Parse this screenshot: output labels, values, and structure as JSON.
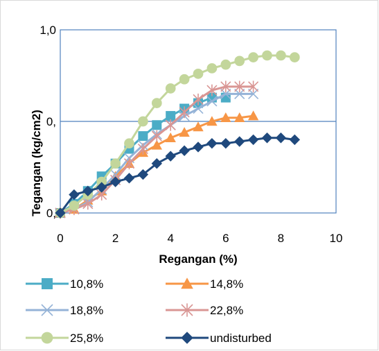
{
  "chart_data": {
    "type": "line",
    "xlabel": "Regangan (%)",
    "ylabel": "Tegangan (kg/cm2)",
    "xlim": [
      0,
      10
    ],
    "ylim": [
      0,
      1.0
    ],
    "x_ticks": [
      "0",
      "2",
      "4",
      "6",
      "8",
      "10"
    ],
    "y_ticks": [
      "0,",
      "0,",
      "1,0"
    ],
    "grid": "horizontal",
    "legend_placement": "bottom",
    "series": [
      {
        "name": "10,8%",
        "color": "#4BACC6",
        "marker": "square",
        "x": [
          0,
          0.5,
          1,
          1.5,
          2,
          2.5,
          3,
          3.5,
          4,
          4.5,
          5,
          5.5,
          6
        ],
        "y": [
          0,
          0.05,
          0.12,
          0.2,
          0.27,
          0.35,
          0.42,
          0.48,
          0.53,
          0.57,
          0.6,
          0.63,
          0.63
        ]
      },
      {
        "name": "14,8%",
        "color": "#F79646",
        "marker": "triangle",
        "x": [
          0,
          0.5,
          1,
          1.5,
          2,
          2.5,
          3,
          3.5,
          4,
          4.5,
          5,
          5.5,
          6,
          6.5,
          7
        ],
        "y": [
          0,
          0.02,
          0.07,
          0.12,
          0.2,
          0.27,
          0.33,
          0.37,
          0.41,
          0.44,
          0.47,
          0.5,
          0.52,
          0.52,
          0.53
        ]
      },
      {
        "name": "18,8%",
        "color": "#95B3D7",
        "marker": "x",
        "x": [
          0,
          0.5,
          1,
          1.5,
          2,
          2.5,
          3,
          3.5,
          4,
          4.5,
          5,
          5.5,
          6,
          6.5,
          7
        ],
        "y": [
          0,
          0.02,
          0.06,
          0.13,
          0.21,
          0.3,
          0.37,
          0.43,
          0.48,
          0.53,
          0.57,
          0.61,
          0.65,
          0.65,
          0.65
        ]
      },
      {
        "name": "22,8%",
        "color": "#D99694",
        "marker": "asterisk",
        "x": [
          0,
          0.5,
          1,
          1.5,
          2,
          2.5,
          3,
          3.5,
          4,
          4.5,
          5,
          5.5,
          6,
          6.5,
          7
        ],
        "y": [
          0,
          0.02,
          0.05,
          0.1,
          0.18,
          0.27,
          0.35,
          0.42,
          0.48,
          0.55,
          0.62,
          0.67,
          0.69,
          0.69,
          0.69
        ]
      },
      {
        "name": "25,8%",
        "color": "#C3D69B",
        "marker": "circle",
        "x": [
          0,
          0.5,
          1,
          1.5,
          2,
          2.5,
          3,
          3.5,
          4,
          4.5,
          5,
          5.5,
          6,
          6.5,
          7,
          7.5,
          8,
          8.5
        ],
        "y": [
          0,
          0.04,
          0.1,
          0.17,
          0.27,
          0.38,
          0.5,
          0.6,
          0.68,
          0.73,
          0.76,
          0.79,
          0.81,
          0.83,
          0.85,
          0.86,
          0.86,
          0.85
        ]
      },
      {
        "name": "undisturbed",
        "color": "#1F497D",
        "marker": "diamond",
        "x": [
          0,
          0.5,
          1,
          1.5,
          2,
          2.5,
          3,
          3.5,
          4,
          4.5,
          5,
          5.5,
          6,
          6.5,
          7,
          7.5,
          8,
          8.5
        ],
        "y": [
          0,
          0.1,
          0.12,
          0.14,
          0.17,
          0.19,
          0.21,
          0.27,
          0.31,
          0.34,
          0.36,
          0.38,
          0.38,
          0.39,
          0.4,
          0.41,
          0.41,
          0.4
        ]
      }
    ]
  }
}
